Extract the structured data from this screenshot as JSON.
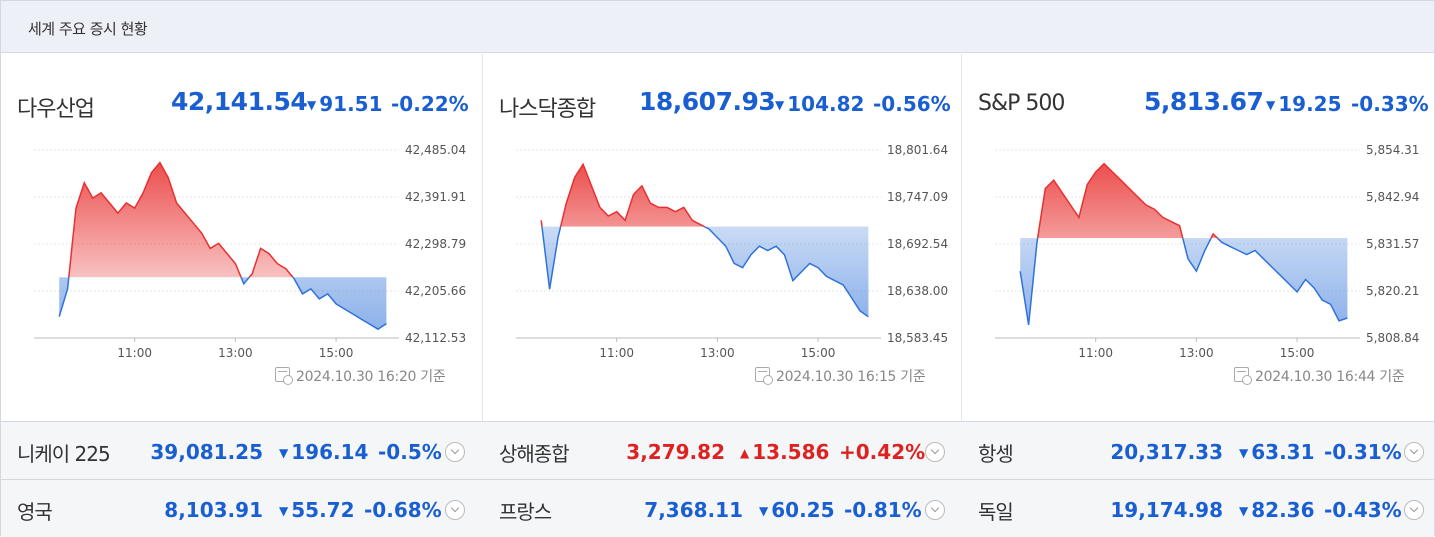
{
  "header": {
    "title": "세계 주요 증시 현황"
  },
  "panels": [
    {
      "name": "다우산업",
      "value": "42,141.54",
      "change": "91.51",
      "percent": "-0.22%",
      "timestamp": "2024.10.30 16:20 기준",
      "yticks": [
        "42,485.04",
        "42,391.91",
        "42,298.79",
        "42,205.66",
        "42,112.53"
      ],
      "xticks": [
        "11:00",
        "13:00",
        "15:00"
      ]
    },
    {
      "name": "나스닥종합",
      "value": "18,607.93",
      "change": "104.82",
      "percent": "-0.56%",
      "timestamp": "2024.10.30 16:15 기준",
      "yticks": [
        "18,801.64",
        "18,747.09",
        "18,692.54",
        "18,638.00",
        "18,583.45"
      ],
      "xticks": [
        "11:00",
        "13:00",
        "15:00"
      ]
    },
    {
      "name": "S&P 500",
      "value": "5,813.67",
      "change": "19.25",
      "percent": "-0.33%",
      "timestamp": "2024.10.30 16:44 기준",
      "yticks": [
        "5,854.31",
        "5,842.94",
        "5,831.57",
        "5,820.21",
        "5,808.84"
      ],
      "xticks": [
        "11:00",
        "13:00",
        "15:00"
      ]
    }
  ],
  "rows": [
    [
      {
        "name": "니케이 225",
        "value": "39,081.25",
        "change": "196.14",
        "percent": "-0.5%",
        "dir": "down"
      },
      {
        "name": "상해종합",
        "value": "3,279.82",
        "change": "13.586",
        "percent": "+0.42%",
        "dir": "up"
      },
      {
        "name": "항셍",
        "value": "20,317.33",
        "change": "63.31",
        "percent": "-0.31%",
        "dir": "down"
      }
    ],
    [
      {
        "name": "영국",
        "value": "8,103.91",
        "change": "55.72",
        "percent": "-0.68%",
        "dir": "down"
      },
      {
        "name": "프랑스",
        "value": "7,368.11",
        "change": "60.25",
        "percent": "-0.81%",
        "dir": "down"
      },
      {
        "name": "독일",
        "value": "19,174.98",
        "change": "82.36",
        "percent": "-0.43%",
        "dir": "down"
      }
    ]
  ],
  "symbols": {
    "down": "▼",
    "up": "▲"
  },
  "colors": {
    "up": "#e8302f",
    "down": "#2f72d9",
    "up_text": "#d22222",
    "down_text": "#1a5fd1"
  },
  "chart_data": [
    {
      "type": "area",
      "title": "다우산업",
      "ylim": [
        42112.53,
        42485.04
      ],
      "baseline": 42233.05,
      "x": [
        "09:30",
        "09:40",
        "09:50",
        "10:00",
        "10:10",
        "10:20",
        "10:30",
        "10:40",
        "10:50",
        "11:00",
        "11:10",
        "11:20",
        "11:30",
        "11:40",
        "11:50",
        "12:00",
        "12:10",
        "12:20",
        "12:30",
        "12:40",
        "12:50",
        "13:00",
        "13:10",
        "13:20",
        "13:30",
        "13:40",
        "13:50",
        "14:00",
        "14:10",
        "14:20",
        "14:30",
        "14:40",
        "14:50",
        "15:00",
        "15:10",
        "15:20",
        "15:30",
        "15:40",
        "15:50",
        "16:00"
      ],
      "y": [
        42155,
        42210,
        42370,
        42420,
        42390,
        42400,
        42380,
        42360,
        42380,
        42370,
        42400,
        42440,
        42460,
        42430,
        42380,
        42360,
        42340,
        42320,
        42290,
        42300,
        42280,
        42260,
        42220,
        42240,
        42290,
        42280,
        42260,
        42250,
        42230,
        42200,
        42210,
        42190,
        42200,
        42180,
        42170,
        42160,
        42150,
        42140,
        42130,
        42141
      ]
    },
    {
      "type": "area",
      "title": "나스닥종합",
      "ylim": [
        18583.45,
        18801.64
      ],
      "baseline": 18712.75,
      "x": [
        "09:30",
        "09:40",
        "09:50",
        "10:00",
        "10:10",
        "10:20",
        "10:30",
        "10:40",
        "10:50",
        "11:00",
        "11:10",
        "11:20",
        "11:30",
        "11:40",
        "11:50",
        "12:00",
        "12:10",
        "12:20",
        "12:30",
        "12:40",
        "12:50",
        "13:00",
        "13:10",
        "13:20",
        "13:30",
        "13:40",
        "13:50",
        "14:00",
        "14:10",
        "14:20",
        "14:30",
        "14:40",
        "14:50",
        "15:00",
        "15:10",
        "15:20",
        "15:30",
        "15:40",
        "15:50",
        "16:00"
      ],
      "y": [
        18720,
        18640,
        18700,
        18740,
        18770,
        18785,
        18760,
        18735,
        18725,
        18730,
        18720,
        18750,
        18760,
        18740,
        18735,
        18735,
        18730,
        18735,
        18720,
        18715,
        18710,
        18700,
        18690,
        18670,
        18665,
        18680,
        18690,
        18685,
        18690,
        18680,
        18650,
        18660,
        18670,
        18665,
        18655,
        18650,
        18645,
        18630,
        18615,
        18608
      ]
    },
    {
      "type": "area",
      "title": "S&P 500",
      "ylim": [
        5808.84,
        5854.31
      ],
      "baseline": 5833.0,
      "x": [
        "09:30",
        "09:40",
        "09:50",
        "10:00",
        "10:10",
        "10:20",
        "10:30",
        "10:40",
        "10:50",
        "11:00",
        "11:10",
        "11:20",
        "11:30",
        "11:40",
        "11:50",
        "12:00",
        "12:10",
        "12:20",
        "12:30",
        "12:40",
        "12:50",
        "13:00",
        "13:10",
        "13:20",
        "13:30",
        "13:40",
        "13:50",
        "14:00",
        "14:10",
        "14:20",
        "14:30",
        "14:40",
        "14:50",
        "15:00",
        "15:10",
        "15:20",
        "15:30",
        "15:40",
        "15:50",
        "16:00"
      ],
      "y": [
        5825,
        5812,
        5832,
        5845,
        5847,
        5844,
        5841,
        5838,
        5846,
        5849,
        5851,
        5849,
        5847,
        5845,
        5843,
        5841,
        5840,
        5838,
        5837,
        5836,
        5828,
        5825,
        5830,
        5834,
        5832,
        5831,
        5830,
        5829,
        5830,
        5828,
        5826,
        5824,
        5822,
        5820,
        5823,
        5821,
        5818,
        5817,
        5813,
        5813.67
      ]
    }
  ]
}
